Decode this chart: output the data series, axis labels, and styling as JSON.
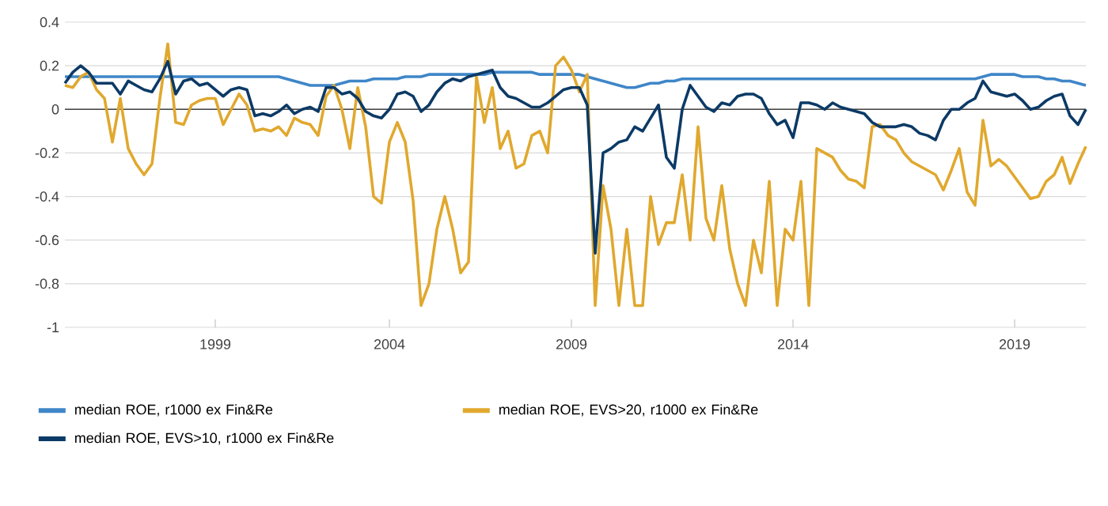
{
  "chart_data": {
    "type": "line",
    "categories": [
      null,
      null,
      null,
      null,
      null,
      null,
      null,
      null,
      null,
      null,
      null,
      null,
      null,
      null,
      null,
      null,
      null,
      null,
      null,
      "1999",
      null,
      null,
      null,
      null,
      null,
      null,
      null,
      null,
      null,
      null,
      null,
      null,
      null,
      null,
      null,
      null,
      null,
      null,
      null,
      null,
      null,
      "2004",
      null,
      null,
      null,
      null,
      null,
      null,
      null,
      null,
      null,
      null,
      null,
      null,
      null,
      null,
      null,
      null,
      null,
      null,
      null,
      null,
      null,
      null,
      "2009",
      null,
      null,
      null,
      null,
      null,
      null,
      null,
      null,
      null,
      null,
      null,
      null,
      null,
      null,
      null,
      null,
      null,
      null,
      null,
      null,
      null,
      null,
      null,
      null,
      null,
      null,
      null,
      "2014",
      null,
      null,
      null,
      null,
      null,
      null,
      null,
      null,
      null,
      null,
      null,
      null,
      null,
      null,
      null,
      null,
      null,
      null,
      null,
      null,
      null,
      null,
      null,
      null,
      null,
      null,
      null,
      "2019",
      null,
      null,
      null,
      null,
      null,
      null,
      null,
      null,
      null
    ],
    "series": [
      {
        "name": "median ROE, r1000 ex Fin&Re",
        "color": "#3f86c8",
        "values": [
          0.15,
          0.15,
          0.15,
          0.15,
          0.15,
          0.15,
          0.15,
          0.15,
          0.15,
          0.15,
          0.15,
          0.15,
          0.15,
          0.15,
          0.15,
          0.15,
          0.15,
          0.15,
          0.15,
          0.15,
          0.15,
          0.15,
          0.15,
          0.15,
          0.15,
          0.15,
          0.15,
          0.15,
          0.14,
          0.13,
          0.12,
          0.11,
          0.11,
          0.11,
          0.11,
          0.12,
          0.13,
          0.13,
          0.13,
          0.14,
          0.14,
          0.14,
          0.14,
          0.15,
          0.15,
          0.15,
          0.16,
          0.16,
          0.16,
          0.16,
          0.16,
          0.16,
          0.16,
          0.16,
          0.17,
          0.17,
          0.17,
          0.17,
          0.17,
          0.17,
          0.16,
          0.16,
          0.16,
          0.16,
          0.16,
          0.16,
          0.15,
          0.14,
          0.13,
          0.12,
          0.11,
          0.1,
          0.1,
          0.11,
          0.12,
          0.12,
          0.13,
          0.13,
          0.14,
          0.14,
          0.14,
          0.14,
          0.14,
          0.14,
          0.14,
          0.14,
          0.14,
          0.14,
          0.14,
          0.14,
          0.14,
          0.14,
          0.14,
          0.14,
          0.14,
          0.14,
          0.14,
          0.14,
          0.14,
          0.14,
          0.14,
          0.14,
          0.14,
          0.14,
          0.14,
          0.14,
          0.14,
          0.14,
          0.14,
          0.14,
          0.14,
          0.14,
          0.14,
          0.14,
          0.14,
          0.14,
          0.15,
          0.16,
          0.16,
          0.16,
          0.16,
          0.15,
          0.15,
          0.15,
          0.14,
          0.14,
          0.13,
          0.13,
          0.12,
          0.11
        ]
      },
      {
        "name": "median ROE, EVS>20, r1000 ex Fin&Re",
        "color": "#e0a82e",
        "values": [
          0.11,
          0.1,
          0.15,
          0.17,
          0.09,
          0.05,
          -0.15,
          0.05,
          -0.18,
          -0.25,
          -0.3,
          -0.25,
          0.05,
          0.3,
          -0.06,
          -0.07,
          0.02,
          0.04,
          0.05,
          0.05,
          -0.07,
          0.0,
          0.07,
          0.02,
          -0.1,
          -0.09,
          -0.1,
          -0.08,
          -0.12,
          -0.04,
          -0.06,
          -0.07,
          -0.12,
          0.06,
          0.11,
          0.0,
          -0.18,
          0.1,
          -0.08,
          -0.4,
          -0.43,
          -0.15,
          -0.06,
          -0.15,
          -0.42,
          -0.9,
          -0.8,
          -0.55,
          -0.4,
          -0.55,
          -0.75,
          -0.7,
          0.15,
          -0.06,
          0.1,
          -0.18,
          -0.1,
          -0.27,
          -0.25,
          -0.12,
          -0.1,
          -0.2,
          0.2,
          0.24,
          0.18,
          0.08,
          0.16,
          -0.9,
          -0.35,
          -0.55,
          -0.9,
          -0.55,
          -0.9,
          -0.9,
          -0.4,
          -0.62,
          -0.52,
          -0.52,
          -0.3,
          -0.6,
          -0.08,
          -0.5,
          -0.6,
          -0.35,
          -0.64,
          -0.8,
          -0.9,
          -0.6,
          -0.75,
          -0.33,
          -0.9,
          -0.55,
          -0.6,
          -0.33,
          -0.9,
          -0.18,
          -0.2,
          -0.22,
          -0.28,
          -0.32,
          -0.33,
          -0.36,
          -0.08,
          -0.07,
          -0.12,
          -0.14,
          -0.2,
          -0.24,
          -0.26,
          -0.28,
          -0.3,
          -0.37,
          -0.28,
          -0.18,
          -0.38,
          -0.44,
          -0.05,
          -0.26,
          -0.23,
          -0.26,
          -0.31,
          -0.36,
          -0.41,
          -0.4,
          -0.33,
          -0.3,
          -0.22,
          -0.34,
          -0.25,
          -0.17
        ]
      },
      {
        "name": "median ROE, EVS>10, r1000 ex Fin&Re",
        "color": "#0c3a66",
        "values": [
          0.12,
          0.17,
          0.2,
          0.17,
          0.12,
          0.12,
          0.12,
          0.07,
          0.13,
          0.11,
          0.09,
          0.08,
          0.14,
          0.22,
          0.07,
          0.13,
          0.14,
          0.11,
          0.12,
          0.09,
          0.06,
          0.09,
          0.1,
          0.09,
          -0.03,
          -0.02,
          -0.03,
          -0.01,
          0.02,
          -0.02,
          0.0,
          0.01,
          -0.01,
          0.1,
          0.1,
          0.07,
          0.08,
          0.05,
          -0.01,
          -0.03,
          -0.04,
          0.0,
          0.07,
          0.08,
          0.06,
          -0.01,
          0.02,
          0.08,
          0.12,
          0.14,
          0.13,
          0.15,
          0.16,
          0.17,
          0.18,
          0.1,
          0.06,
          0.05,
          0.03,
          0.01,
          0.01,
          0.03,
          0.06,
          0.09,
          0.1,
          0.1,
          0.02,
          -0.66,
          -0.2,
          -0.18,
          -0.15,
          -0.14,
          -0.08,
          -0.1,
          -0.04,
          0.02,
          -0.22,
          -0.27,
          0.0,
          0.11,
          0.06,
          0.01,
          -0.01,
          0.03,
          0.02,
          0.06,
          0.07,
          0.07,
          0.05,
          -0.02,
          -0.07,
          -0.05,
          -0.13,
          0.03,
          0.03,
          0.02,
          0.0,
          0.03,
          0.01,
          0.0,
          -0.01,
          -0.02,
          -0.06,
          -0.08,
          -0.08,
          -0.08,
          -0.07,
          -0.08,
          -0.11,
          -0.12,
          -0.14,
          -0.05,
          0.0,
          0.0,
          0.03,
          0.05,
          0.13,
          0.08,
          0.07,
          0.06,
          0.07,
          0.04,
          0.0,
          0.01,
          0.04,
          0.06,
          0.07,
          -0.03,
          -0.07,
          0.0
        ]
      }
    ],
    "ylim": [
      -1,
      0.4
    ],
    "yticks": [
      0.4,
      0.2,
      0,
      -0.2,
      -0.4,
      -0.6,
      -0.8,
      -1
    ],
    "grid": "y",
    "legend": "bottom"
  }
}
